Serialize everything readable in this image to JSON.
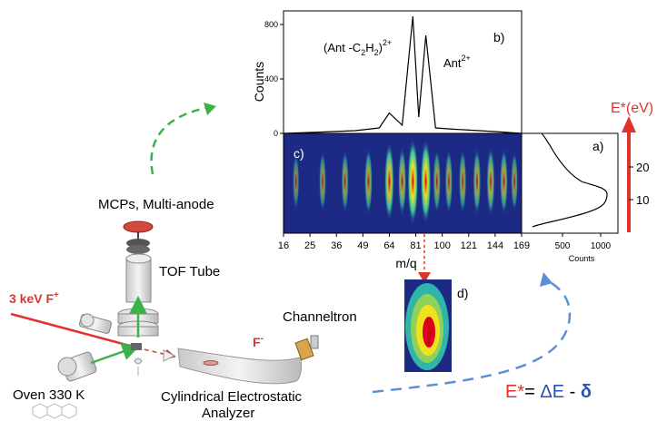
{
  "colors": {
    "red": "#e0342b",
    "blue_text": "#2a4fb8",
    "arrow_blue": "#5b8fd6",
    "arrow_green": "#3bb34a"
  },
  "panel_b": {
    "label": "b)",
    "ylabel": "Counts",
    "yticks": [
      "0",
      "400",
      "800"
    ],
    "peak_left_main": "(Ant -C",
    "peak_left_sub": "2",
    "peak_left_mid": "H",
    "peak_left_sub2": "2",
    "peak_left_end": ")",
    "peak_left_sup": "2+",
    "peak_right_main": "Ant",
    "peak_right_sup": "2+"
  },
  "panel_c": {
    "label": "c)"
  },
  "panel_a": {
    "label": "a)",
    "xticks": [
      "500",
      "1000"
    ],
    "xlabel": "Counts",
    "yticks": [
      "10",
      "20"
    ]
  },
  "mq_axis": {
    "ticks": [
      "16",
      "25",
      "36",
      "49",
      "64",
      "81",
      "100",
      "121",
      "144",
      "169"
    ],
    "label": "m/q"
  },
  "panel_d": {
    "label": "d)"
  },
  "energy_axis": {
    "label": "E*(eV)"
  },
  "apparatus": {
    "mcp_label": "MCPs, Multi-anode",
    "tof_label": "TOF Tube",
    "beam_label": "3 keV  F",
    "beam_sup": "+",
    "anion_label": "F",
    "anion_sup": "-",
    "channeltron_label": "Channeltron",
    "oven_label": "Oven 330 K",
    "analyzer_line1": "Cylindrical Electrostatic",
    "analyzer_line2": "Analyzer"
  },
  "formula": {
    "lhs": "E*",
    "eq": "= ",
    "delta_e": "ΔE",
    "minus": " - ",
    "delta": "δ"
  },
  "chart_data": {
    "type": "line",
    "xlabel": "m/q",
    "ylabel": "Counts",
    "ylim": [
      0,
      900
    ],
    "x_ticks": [
      16,
      25,
      36,
      49,
      64,
      81,
      100,
      121,
      144,
      169
    ],
    "series": [
      {
        "values": [
          {
            "x": 16,
            "y": 0
          },
          {
            "x": 30,
            "y": 10
          },
          {
            "x": 45,
            "y": 20
          },
          {
            "x": 58,
            "y": 40
          },
          {
            "x": 64,
            "y": 150
          },
          {
            "x": 72,
            "y": 60
          },
          {
            "x": 79,
            "y": 860
          },
          {
            "x": 83,
            "y": 120
          },
          {
            "x": 88,
            "y": 720
          },
          {
            "x": 95,
            "y": 40
          },
          {
            "x": 110,
            "y": 30
          },
          {
            "x": 130,
            "y": 20
          },
          {
            "x": 150,
            "y": 10
          },
          {
            "x": 169,
            "y": 0
          }
        ]
      }
    ]
  }
}
